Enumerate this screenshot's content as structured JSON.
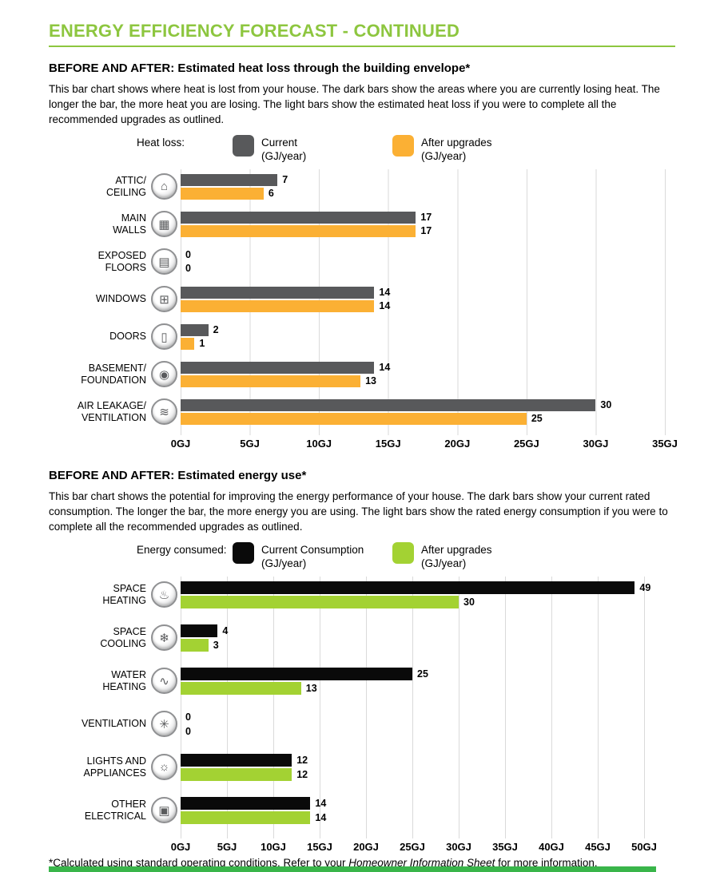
{
  "page": {
    "title": "ENERGY EFFICIENCY FORECAST - CONTINUED",
    "footer": {
      "prefix": "*Calculated using standard operating conditions. Refer to your ",
      "italic": "Homeowner Information Sheet",
      "suffix": " for more information."
    },
    "colors": {
      "accent_green": "#8DC63F",
      "bottom_bar_green": "#39B54A",
      "gridline": "#DADADA"
    }
  },
  "sections": [
    {
      "heading": "BEFORE AND AFTER: Estimated heat loss through the building envelope*",
      "description": "This bar chart shows where heat is lost from your house. The dark bars show the areas where you are currently losing heat. The longer the bar, the more heat you are losing. The light bars show the estimated heat loss if you were to complete all the recommended upgrades as outlined."
    },
    {
      "heading": "BEFORE AND AFTER: Estimated energy use*",
      "description": "This bar chart shows the potential for improving the energy performance of your house. The dark bars show your current rated consumption. The longer the bar, the more energy you are using. The light bars show the rated energy consumption if you were to complete all the recommended upgrades as outlined."
    }
  ],
  "chart_data": [
    {
      "type": "bar",
      "orientation": "horizontal",
      "legend_label": "Heat loss:",
      "xlabel": "GJ",
      "xlim": [
        0,
        35
      ],
      "ticks": [
        "0GJ",
        "5GJ",
        "10GJ",
        "15GJ",
        "20GJ",
        "25GJ",
        "30GJ",
        "35GJ"
      ],
      "categories": [
        {
          "lines": [
            "ATTIC/",
            "CEILING"
          ],
          "icon": "attic-roof-icon",
          "glyph": "⌂"
        },
        {
          "lines": [
            "MAIN",
            "WALLS"
          ],
          "icon": "wall-insulation-icon",
          "glyph": "▦"
        },
        {
          "lines": [
            "EXPOSED",
            "FLOORS"
          ],
          "icon": "exposed-floor-icon",
          "glyph": "▤"
        },
        {
          "lines": [
            "WINDOWS"
          ],
          "icon": "window-icon",
          "glyph": "⊞"
        },
        {
          "lines": [
            "DOORS"
          ],
          "icon": "door-icon",
          "glyph": "▯"
        },
        {
          "lines": [
            "BASEMENT/",
            "FOUNDATION"
          ],
          "icon": "foundation-stone-icon",
          "glyph": "◉"
        },
        {
          "lines": [
            "AIR LEAKAGE/",
            "VENTILATION"
          ],
          "icon": "air-leakage-icon",
          "glyph": "≋"
        }
      ],
      "series": [
        {
          "label": "Current",
          "unit": "(GJ/year)",
          "color": "#58595B",
          "values": [
            7,
            17,
            0,
            14,
            2,
            14,
            30
          ]
        },
        {
          "label": "After upgrades",
          "unit": "(GJ/year)",
          "color": "#FBB034",
          "values": [
            6,
            17,
            0,
            14,
            1,
            13,
            25
          ]
        }
      ]
    },
    {
      "type": "bar",
      "orientation": "horizontal",
      "legend_label": "Energy consumed:",
      "xlabel": "GJ",
      "xlim": [
        0,
        50
      ],
      "ticks": [
        "0GJ",
        "5GJ",
        "10GJ",
        "15GJ",
        "20GJ",
        "25GJ",
        "30GJ",
        "35GJ",
        "40GJ",
        "45GJ",
        "50GJ"
      ],
      "categories": [
        {
          "lines": [
            "SPACE",
            "HEATING"
          ],
          "icon": "thermometer-icon",
          "glyph": "♨"
        },
        {
          "lines": [
            "SPACE",
            "COOLING"
          ],
          "icon": "snowflake-icon",
          "glyph": "❄"
        },
        {
          "lines": [
            "WATER",
            "HEATING"
          ],
          "icon": "shower-icon",
          "glyph": "∿"
        },
        {
          "lines": [
            "VENTILATION"
          ],
          "icon": "fan-icon",
          "glyph": "✳"
        },
        {
          "lines": [
            "LIGHTS AND",
            "APPLIANCES"
          ],
          "icon": "lightbulb-icon",
          "glyph": "☼"
        },
        {
          "lines": [
            "OTHER ELECTRICAL"
          ],
          "icon": "electrical-outlet-icon",
          "glyph": "▣"
        }
      ],
      "series": [
        {
          "label": "Current Consumption",
          "unit": "(GJ/year)",
          "color": "#0A0A0A",
          "values": [
            49,
            4,
            25,
            0,
            12,
            14
          ]
        },
        {
          "label": "After upgrades",
          "unit": "(GJ/year)",
          "color": "#A3D233",
          "values": [
            30,
            3,
            13,
            0,
            12,
            14
          ]
        }
      ]
    }
  ]
}
